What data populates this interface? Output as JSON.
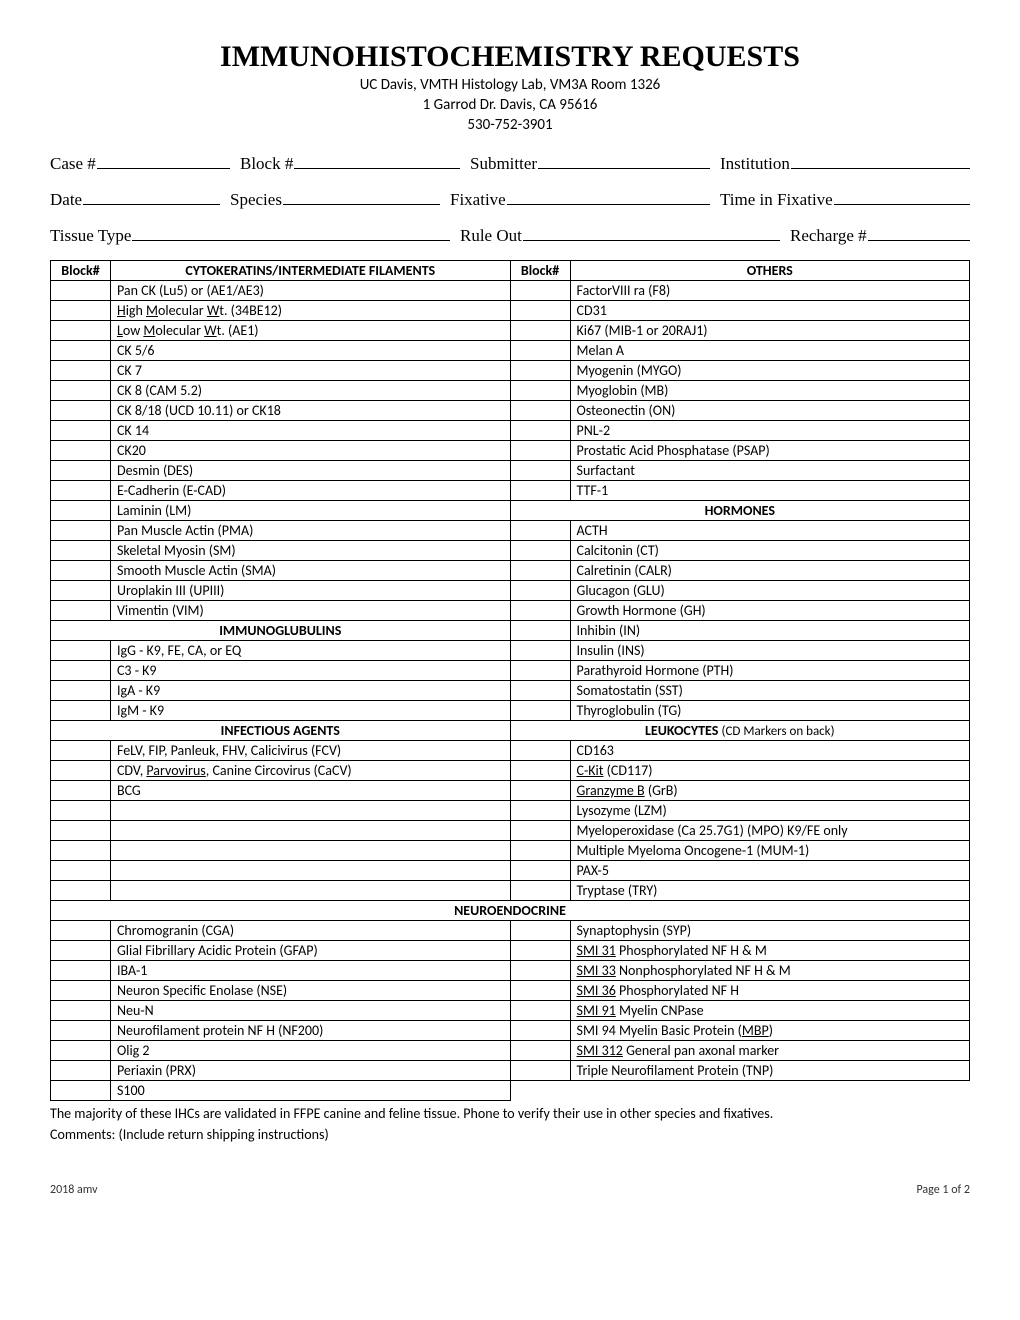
{
  "header": {
    "title": "IMMUNOHISTOCHEMISTRY REQUESTS",
    "line1": "UC Davis, VMTH Histology Lab, VM3A Room 1326",
    "line2": "1 Garrod Dr. Davis, CA 95616",
    "line3": "530-752-3901"
  },
  "fields": {
    "case": "Case #",
    "block": "Block #",
    "submitter": "Submitter",
    "institution": "Institution",
    "date": "Date",
    "species": "Species",
    "fixative": "Fixative",
    "timeinfix": "Time in Fixative",
    "tissuetype": "Tissue Type",
    "ruleout": "Rule Out",
    "recharge": "Recharge #"
  },
  "columns": {
    "block": "Block#",
    "left_header": "CYTOKERATINS/INTERMEDIATE FILAMENTS",
    "right_header": "OTHERS"
  },
  "cyto": [
    "Pan CK (Lu5) or (AE1/AE3)",
    {
      "html": "<span class='u'>H</span>igh <span class='u'>M</span>olecular <span class='u'>W</span>t. (34BE12)"
    },
    {
      "html": "<span class='u'>L</span>ow <span class='u'>M</span>olecular <span class='u'>W</span>t. (AE1)"
    },
    "CK 5/6",
    "CK 7",
    "CK 8 (CAM 5.2)",
    "CK 8/18 (UCD 10.11) or CK18",
    "CK 14",
    "CK20",
    "Desmin (DES)",
    "E-Cadherin (E-CAD)",
    "Laminin (LM)",
    "Pan Muscle Actin (PMA)",
    "Skeletal Myosin (SM)",
    "Smooth Muscle Actin (SMA)",
    "Uroplakin III (UPIII)",
    "Vimentin (VIM)"
  ],
  "immunoglobulins_header": "IMMUNOGLUBULINS",
  "immunoglobulins": [
    "IgG - K9, FE, CA, or EQ",
    "C3 - K9",
    "IgA - K9",
    "IgM - K9"
  ],
  "infectious_header": "INFECTIOUS AGENTS",
  "infectious": [
    "FeLV, FIP, Panleuk, FHV, Calicivirus (FCV)",
    {
      "html": "CDV, <span class='u'>Parvovirus</span>, Canine Circovirus (CaCV)"
    },
    "BCG"
  ],
  "others": [
    "FactorVIII ra (F8)",
    "CD31",
    "Ki67 (MIB-1 or 20RAJ1)",
    "Melan A",
    "Myogenin (MYGO)",
    "Myoglobin (MB)",
    "Osteonectin (ON)",
    "PNL-2",
    "Prostatic Acid Phosphatase (PSAP)",
    "Surfactant",
    "TTF-1"
  ],
  "hormones_header": "HORMONES",
  "hormones": [
    "ACTH",
    "Calcitonin (CT)",
    "Calretinin (CALR)",
    "Glucagon (GLU)",
    "Growth Hormone (GH)",
    "Inhibin (IN)",
    "Insulin (INS)",
    "Parathyroid Hormone (PTH)",
    "Somatostatin (SST)",
    "Thyroglobulin (TG)"
  ],
  "leuko_header": "LEUKOCYTES",
  "leuko_note": "(CD Markers on back)",
  "leuko": [
    "CD163",
    {
      "html": "<span class='u'>C-Kit</span> (CD117)"
    },
    {
      "html": "<span class='u'>Granzyme B</span> (GrB)"
    },
    "Lysozyme (LZM)",
    "Myeloperoxidase (Ca 25.7G1) (MPO) K9/FE only",
    "Multiple Myeloma Oncogene-1 (MUM-1)",
    "PAX-5",
    "Tryptase (TRY)"
  ],
  "neuro_header": "NEUROENDOCRINE",
  "neuro_left": [
    "Chromogranin (CGA)",
    "Glial Fibrillary Acidic Protein (GFAP)",
    "IBA-1",
    "Neuron Specific Enolase (NSE)",
    "Neu-N",
    "Neurofilament protein NF H (NF200)",
    "Olig 2",
    "Periaxin (PRX)",
    "S100"
  ],
  "neuro_right": [
    "Synaptophysin (SYP)",
    {
      "html": "<span class='u'>SMI 31</span> Phosphorylated NF H & M"
    },
    {
      "html": "<span class='u'>SMI 33</span> Nonphosphorylated NF H & M"
    },
    {
      "html": "<span class='u'>SMI 36</span> Phosphorylated NF H"
    },
    {
      "html": "<span class='u'>SMI 91</span> Myelin CNPase"
    },
    {
      "html": "SMI 94 Myelin Basic Protein (<span class='u'>MBP</span>)"
    },
    {
      "html": "<span class='u'>SMI 312</span> General pan axonal marker"
    },
    "Triple Neurofilament Protein (TNP)"
  ],
  "footnote1": "The majority of these IHCs are validated in FFPE canine and feline tissue. Phone to verify their use in other species and fixatives.",
  "footnote2": "Comments: (Include return shipping instructions)",
  "footer_left": "2018 amv",
  "footer_right": "Page 1 of 2"
}
